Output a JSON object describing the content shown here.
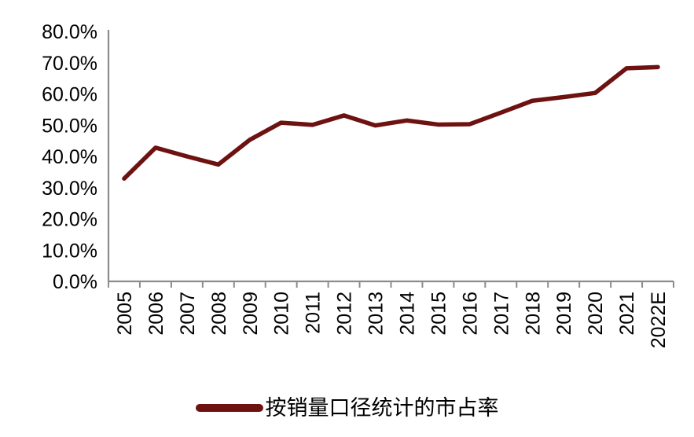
{
  "chart_data": {
    "type": "line",
    "title": "",
    "xlabel": "",
    "ylabel": "",
    "categories": [
      "2005",
      "2006",
      "2007",
      "2008",
      "2009",
      "2010",
      "2011",
      "2012",
      "2013",
      "2014",
      "2015",
      "2016",
      "2017",
      "2018",
      "2019",
      "2020",
      "2021",
      "2022E"
    ],
    "series": [
      {
        "name": "按销量口径统计的市占率",
        "values": [
          32.9,
          42.8,
          40.0,
          37.4,
          45.3,
          50.8,
          50.1,
          53.1,
          49.9,
          51.5,
          50.2,
          50.3,
          54.0,
          57.8,
          59.0,
          60.3,
          68.2,
          68.6
        ]
      }
    ],
    "ylim": [
      0,
      80
    ],
    "y_tick_values": [
      0,
      10,
      20,
      30,
      40,
      50,
      60,
      70,
      80
    ],
    "y_tick_labels": [
      "0.0%",
      "10.0%",
      "20.0%",
      "30.0%",
      "40.0%",
      "50.0%",
      "60.0%",
      "70.0%",
      "80.0%"
    ],
    "grid": false,
    "legend_position": "bottom",
    "x_label_rotation_deg": -90,
    "colors": {
      "line": "#6E1111",
      "axis": "#8C8C8C",
      "text": "#000000",
      "background": "#FFFFFF"
    }
  }
}
